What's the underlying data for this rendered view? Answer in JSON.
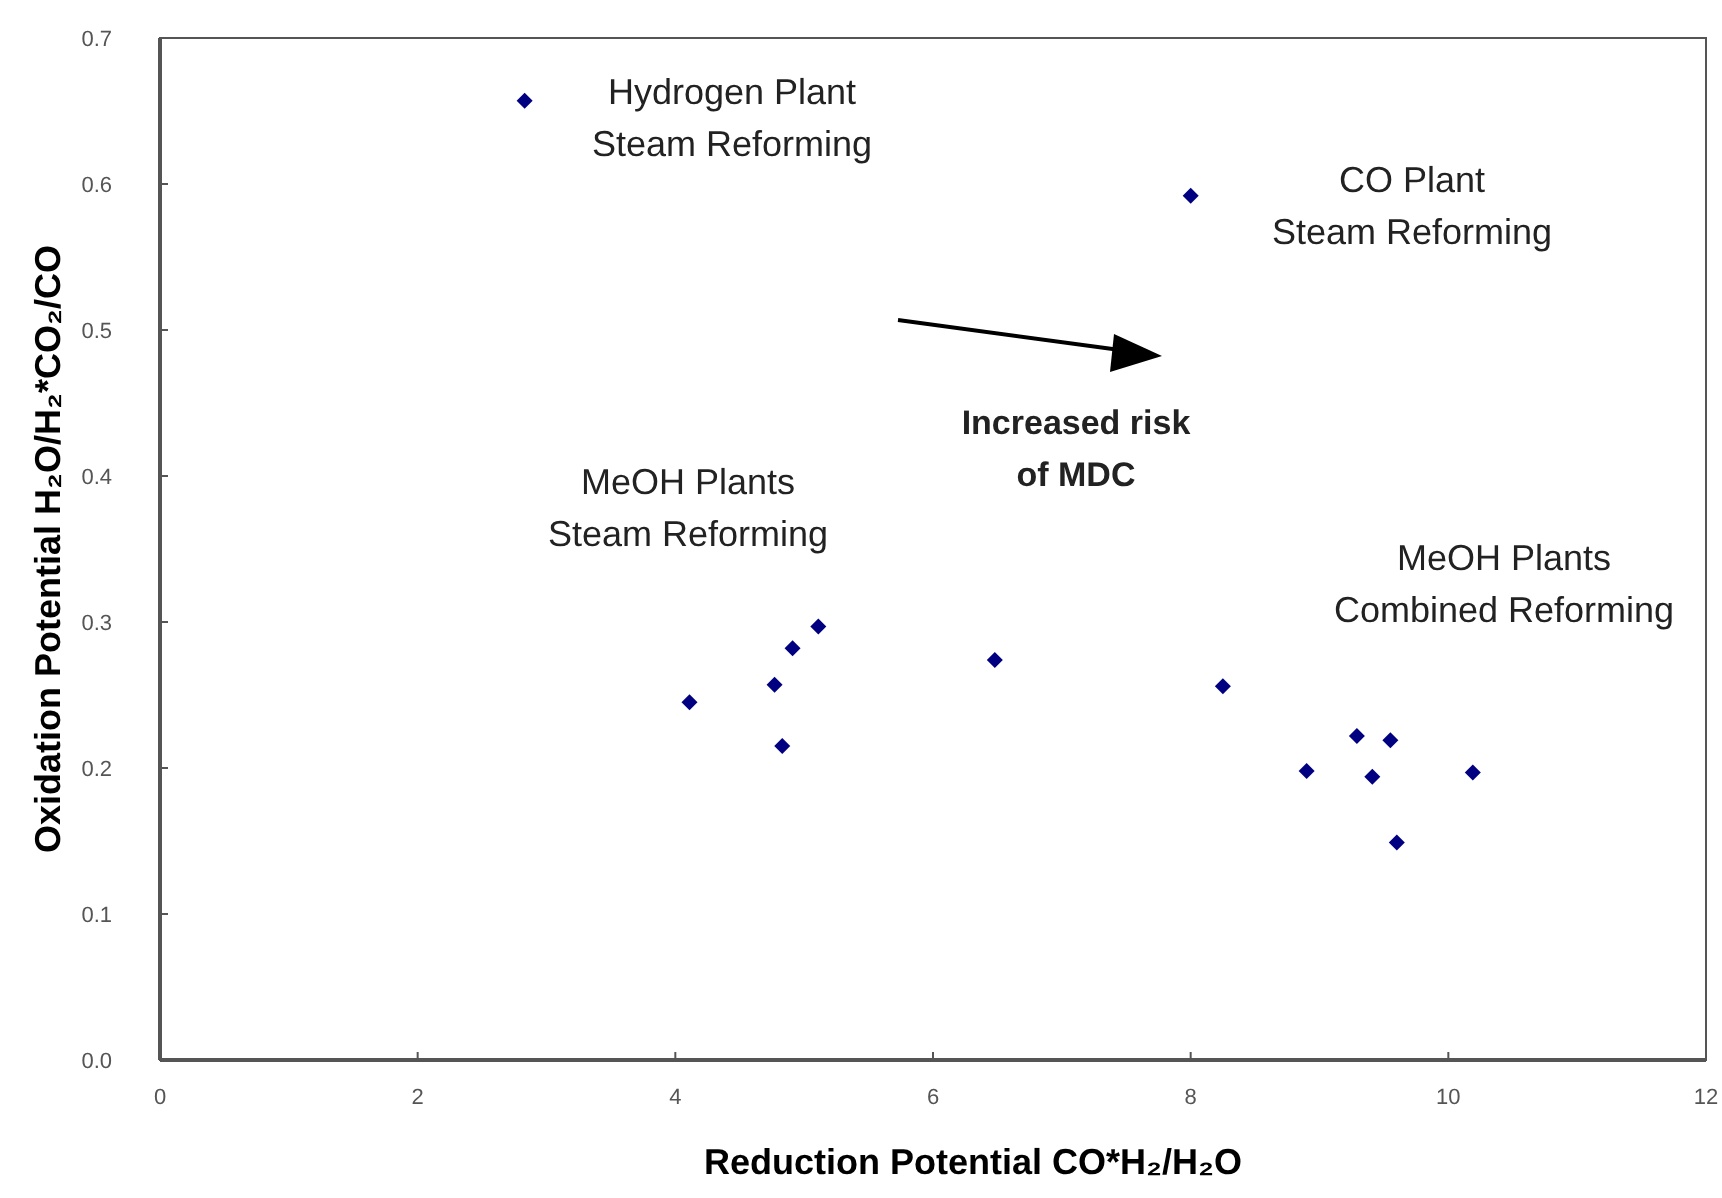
{
  "chart_data": {
    "type": "scatter",
    "xlabel": "Reduction Potential CO*H₂/H₂O",
    "ylabel": "Oxidation Potential H₂O/H₂*CO₂/CO",
    "x": [
      2.83,
      8.0,
      4.11,
      4.77,
      4.91,
      5.11,
      4.83,
      6.48,
      8.25,
      8.9,
      9.29,
      9.55,
      9.41,
      10.19,
      9.6
    ],
    "values": [
      0.657,
      0.592,
      0.245,
      0.257,
      0.282,
      0.297,
      0.215,
      0.274,
      0.256,
      0.198,
      0.222,
      0.219,
      0.194,
      0.197,
      0.149
    ],
    "color": "#000080",
    "marker": "diamond",
    "xlim": [
      0,
      12
    ],
    "xticks": [
      0,
      2,
      4,
      6,
      8,
      10,
      12
    ],
    "ylim": [
      0,
      0.7
    ],
    "yticks": [
      {
        "value": 0,
        "label": "0.0"
      },
      0.1,
      0.2,
      0.3,
      0.4,
      0.5,
      0.6,
      0.7
    ],
    "grid": false,
    "annotations": [
      "Hydrogen Plant\nSteam Reforming",
      "CO Plant\nSteam Reforming",
      "Increased risk\nof MDC",
      "MeOH Plants\nSteam Reforming",
      "MeOH Plants\nCombined Reforming"
    ]
  }
}
